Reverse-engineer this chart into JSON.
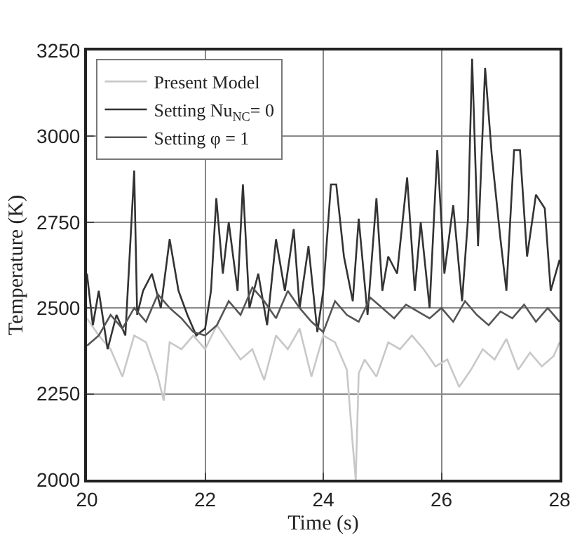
{
  "chart_data": {
    "type": "line",
    "xlabel": "Time (s)",
    "ylabel": "Temperature (K)",
    "xlim": [
      20,
      28
    ],
    "xticks": [
      20,
      22,
      24,
      26,
      28
    ],
    "ylim": [
      2000,
      3250
    ],
    "yticks": [
      2000,
      2250,
      2500,
      2750,
      3000,
      3250
    ],
    "grid": true,
    "legend": "top left",
    "marker": "none",
    "line_style": "solid",
    "series": [
      {
        "name": "Present Model",
        "color": "#c8c8c8",
        "x": [
          20,
          20.2,
          20.4,
          20.6,
          20.8,
          21.0,
          21.2,
          21.3,
          21.4,
          21.6,
          21.8,
          22.0,
          22.2,
          22.4,
          22.6,
          22.8,
          23.0,
          23.2,
          23.4,
          23.6,
          23.8,
          24.0,
          24.2,
          24.4,
          24.5,
          24.55,
          24.6,
          24.7,
          24.9,
          25.1,
          25.3,
          25.5,
          25.7,
          25.9,
          26.1,
          26.3,
          26.5,
          26.7,
          26.9,
          27.1,
          27.3,
          27.5,
          27.7,
          27.9,
          28
        ],
        "values": [
          2470,
          2420,
          2380,
          2300,
          2420,
          2400,
          2300,
          2230,
          2400,
          2380,
          2420,
          2380,
          2450,
          2400,
          2350,
          2380,
          2290,
          2420,
          2380,
          2440,
          2300,
          2420,
          2400,
          2320,
          2100,
          2000,
          2310,
          2350,
          2300,
          2400,
          2380,
          2420,
          2380,
          2330,
          2350,
          2270,
          2320,
          2380,
          2350,
          2410,
          2320,
          2370,
          2330,
          2360,
          2400
        ]
      },
      {
        "name": "Setting Nu$_{NC}$= 0",
        "color": "#333333",
        "x": [
          20,
          20.1,
          20.2,
          20.35,
          20.5,
          20.65,
          20.8,
          20.85,
          20.95,
          21.1,
          21.25,
          21.4,
          21.55,
          21.7,
          21.85,
          22.0,
          22.1,
          22.19,
          22.3,
          22.4,
          22.55,
          22.64,
          22.75,
          22.9,
          23.05,
          23.2,
          23.35,
          23.5,
          23.6,
          23.75,
          23.9,
          24.0,
          24.13,
          24.22,
          24.35,
          24.5,
          24.6,
          24.75,
          24.9,
          25.0,
          25.1,
          25.25,
          25.42,
          25.55,
          25.65,
          25.8,
          25.93,
          26.05,
          26.2,
          26.35,
          26.45,
          26.52,
          26.62,
          26.74,
          26.85,
          27.0,
          27.1,
          27.23,
          27.33,
          27.45,
          27.6,
          27.75,
          27.85,
          28
        ],
        "values": [
          2600,
          2450,
          2550,
          2380,
          2480,
          2420,
          2900,
          2480,
          2550,
          2600,
          2500,
          2700,
          2550,
          2480,
          2420,
          2440,
          2550,
          2820,
          2600,
          2750,
          2550,
          2860,
          2500,
          2600,
          2450,
          2700,
          2550,
          2730,
          2500,
          2680,
          2430,
          2550,
          2860,
          2860,
          2650,
          2520,
          2760,
          2480,
          2820,
          2550,
          2650,
          2600,
          2880,
          2550,
          2750,
          2500,
          2960,
          2600,
          2800,
          2520,
          2760,
          3226,
          2680,
          3199,
          2950,
          2700,
          2550,
          2960,
          2960,
          2650,
          2830,
          2790,
          2550,
          2640
        ]
      },
      {
        "name": "Setting φ = 1",
        "color": "#555555",
        "x": [
          20,
          20.2,
          20.4,
          20.6,
          20.8,
          21.0,
          21.2,
          21.4,
          21.6,
          21.8,
          22.0,
          22.2,
          22.4,
          22.6,
          22.8,
          23.0,
          23.2,
          23.4,
          23.6,
          23.8,
          24.0,
          24.2,
          24.4,
          24.6,
          24.8,
          25.0,
          25.2,
          25.4,
          25.6,
          25.8,
          26.0,
          26.2,
          26.4,
          26.6,
          26.8,
          27.0,
          27.2,
          27.4,
          27.6,
          27.8,
          28
        ],
        "values": [
          2390,
          2420,
          2480,
          2440,
          2500,
          2460,
          2540,
          2500,
          2470,
          2430,
          2420,
          2450,
          2520,
          2480,
          2560,
          2520,
          2470,
          2550,
          2500,
          2460,
          2430,
          2520,
          2480,
          2460,
          2530,
          2500,
          2470,
          2510,
          2490,
          2470,
          2500,
          2460,
          2520,
          2480,
          2450,
          2490,
          2470,
          2510,
          2460,
          2500,
          2460
        ]
      }
    ]
  }
}
